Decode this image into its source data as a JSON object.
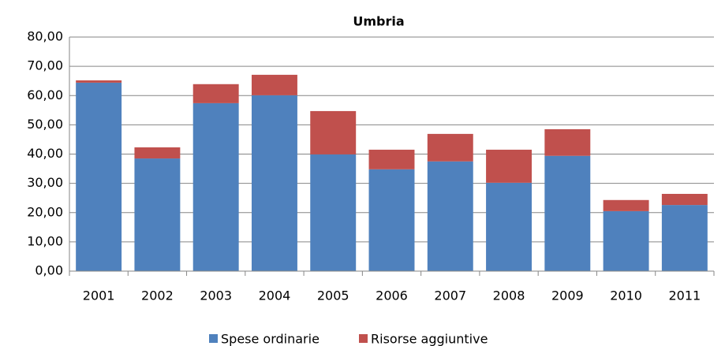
{
  "chart_data": {
    "type": "stacked_bar",
    "title": "Umbria",
    "categories": [
      "2001",
      "2002",
      "2003",
      "2004",
      "2005",
      "2006",
      "2007",
      "2008",
      "2009",
      "2010",
      "2011"
    ],
    "series": [
      {
        "name": "Spese ordinarie",
        "color": "#4f81bd",
        "values": [
          64.4,
          38.5,
          57.4,
          60.1,
          39.9,
          34.8,
          37.5,
          30.2,
          39.4,
          20.5,
          22.6
        ]
      },
      {
        "name": "Risorse aggiuntive",
        "color": "#c0504d",
        "values": [
          0.8,
          3.8,
          6.5,
          7.0,
          14.8,
          6.7,
          9.4,
          11.3,
          9.1,
          3.8,
          3.8
        ]
      }
    ],
    "ylim": [
      0,
      80
    ],
    "yticks": [
      {
        "value": 0,
        "label": "0,00"
      },
      {
        "value": 10,
        "label": "10,00"
      },
      {
        "value": 20,
        "label": "20,00"
      },
      {
        "value": 30,
        "label": "30,00"
      },
      {
        "value": 40,
        "label": "40,00"
      },
      {
        "value": 50,
        "label": "50,00"
      },
      {
        "value": 60,
        "label": "60,00"
      },
      {
        "value": 70,
        "label": "70,00"
      },
      {
        "value": 80,
        "label": "80,00"
      }
    ],
    "grid": true,
    "legend": "bottom"
  }
}
